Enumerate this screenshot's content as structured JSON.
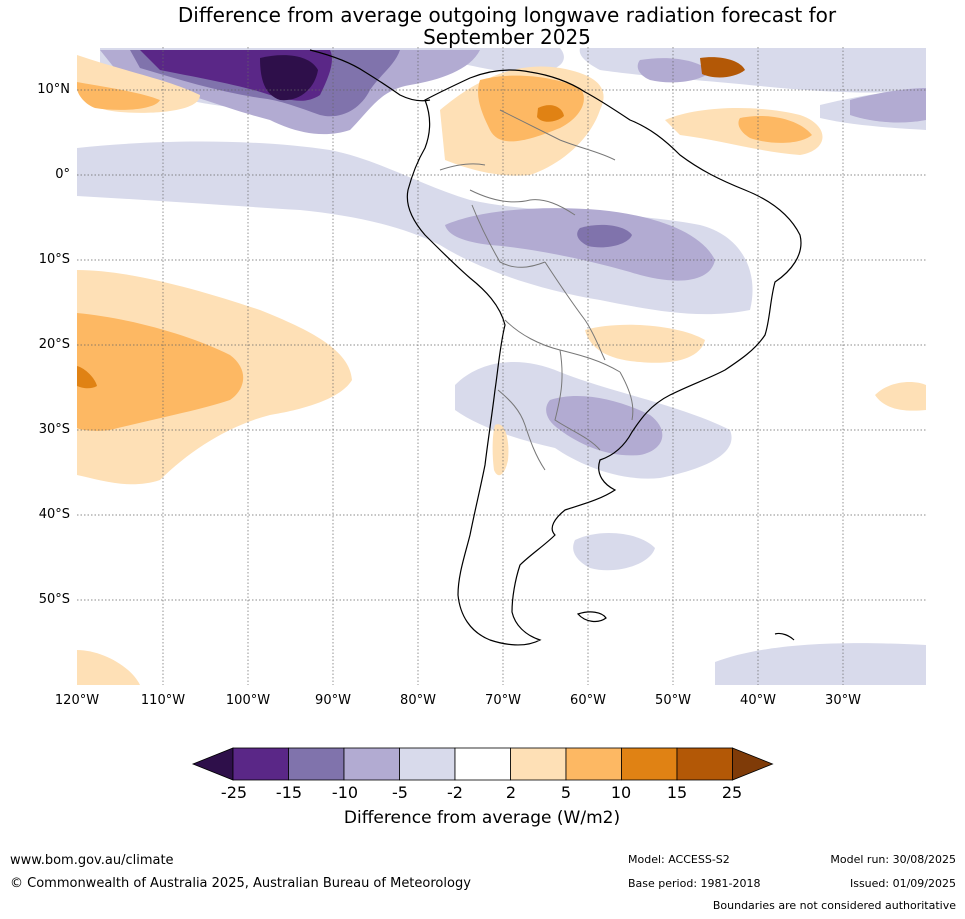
{
  "title_line1": "Difference from average outgoing longwave radiation forecast for",
  "title_line2": "September 2025",
  "lat_labels": [
    "10°N",
    "0°",
    "10°S",
    "20°S",
    "30°S",
    "40°S",
    "50°S"
  ],
  "lon_labels": [
    "120°W",
    "110°W",
    "100°W",
    "90°W",
    "80°W",
    "70°W",
    "60°W",
    "50°W",
    "40°W",
    "30°W"
  ],
  "colorbar": {
    "ticks": [
      "-25",
      "-15",
      "-10",
      "-5",
      "-2",
      "2",
      "5",
      "10",
      "15",
      "25"
    ],
    "colors": [
      "#2e0f4a",
      "#5a2787",
      "#8073ac",
      "#b2abd2",
      "#d8daeb",
      "#ffffff",
      "#fee0b6",
      "#fdb863",
      "#e08214",
      "#b35806",
      "#7f3b08"
    ],
    "label": "Difference from average (W/m2)"
  },
  "footer": {
    "site": "www.bom.gov.au/climate",
    "copyright": "© Commonwealth of Australia 2025, Australian Bureau of Meteorology",
    "model": "Model: ACCESS-S2",
    "base_period": "Base period: 1981-2018",
    "model_run": "Model run: 30/08/2025",
    "issued": "Issued: 01/09/2025",
    "disclaimer": "Boundaries are not considered authoritative"
  }
}
